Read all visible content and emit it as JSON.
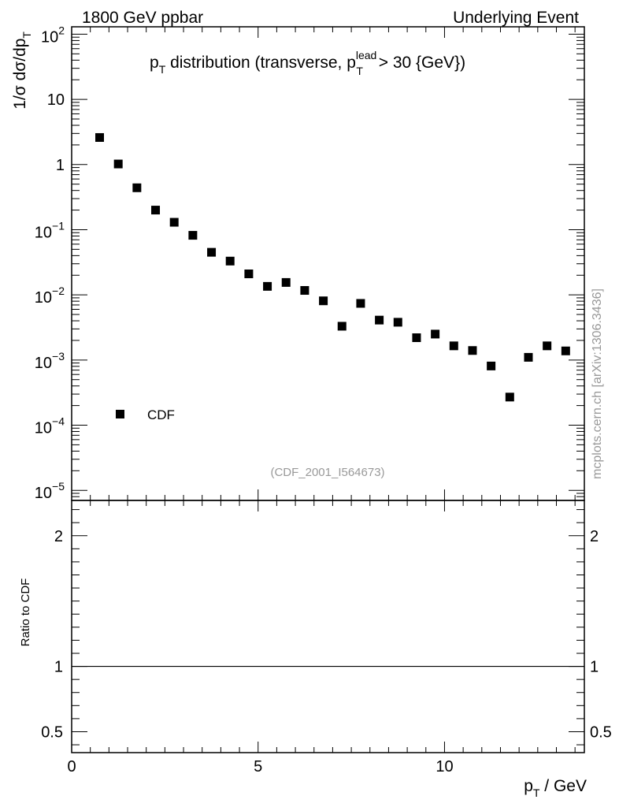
{
  "header": {
    "left": "1800 GeV ppbar",
    "right": "Underlying Event"
  },
  "side_label": "mcplots.cern.ch [arXiv:1306.3436]",
  "watermark": "(CDF_2001_I564673)",
  "chart_data": [
    {
      "type": "scatter",
      "title_parts": {
        "p": "p",
        "T": "T",
        "mid": " distribution (transverse, ",
        "lead": "lead",
        "end": " > 30 {GeV})"
      },
      "ylabel_parts": {
        "lead": "1/σ  dσ/dp",
        "T": "T"
      },
      "y_scale": "log",
      "ylim": [
        7e-06,
        130
      ],
      "xlim": [
        0,
        13.75
      ],
      "y_tick_labels": [
        {
          "base": "10",
          "exp": "2",
          "value": 100
        },
        {
          "base": "10",
          "exp": "",
          "value": 10
        },
        {
          "base": "1",
          "exp": "",
          "value": 1
        },
        {
          "base": "10",
          "exp": "−1",
          "value": 0.1
        },
        {
          "base": "10",
          "exp": "−2",
          "value": 0.01
        },
        {
          "base": "10",
          "exp": "−3",
          "value": 0.001
        },
        {
          "base": "10",
          "exp": "−4",
          "value": 0.0001
        },
        {
          "base": "10",
          "exp": "−5",
          "value": 1e-05
        }
      ],
      "legend": {
        "label": "CDF",
        "position": "lower-left"
      },
      "series": [
        {
          "name": "CDF",
          "x": [
            0.75,
            1.25,
            1.75,
            2.25,
            2.75,
            3.25,
            3.75,
            4.25,
            4.75,
            5.25,
            5.75,
            6.25,
            6.75,
            7.25,
            7.75,
            8.25,
            8.75,
            9.25,
            9.75,
            10.25,
            10.75,
            11.25,
            11.75,
            12.25,
            12.75,
            13.25
          ],
          "y": [
            2.6,
            1.02,
            0.44,
            0.2,
            0.13,
            0.082,
            0.045,
            0.033,
            0.021,
            0.0135,
            0.0155,
            0.0117,
            0.0081,
            0.0033,
            0.0074,
            0.0041,
            0.0038,
            0.0022,
            0.0025,
            0.00165,
            0.0014,
            0.00081,
            0.00027,
            0.0011,
            0.00165,
            0.00138
          ]
        }
      ]
    },
    {
      "type": "line",
      "ylabel": "Ratio to CDF",
      "xlabel_parts": {
        "p": "p",
        "T": "T",
        "unit": " / GeV"
      },
      "xlim": [
        0,
        13.75
      ],
      "ylim": [
        0.34,
        2.27
      ],
      "x_tick_labels": [
        {
          "label": "0",
          "value": 0
        },
        {
          "label": "5",
          "value": 5
        },
        {
          "label": "10",
          "value": 10
        }
      ],
      "y_tick_labels": [
        {
          "label": "2",
          "value": 2
        },
        {
          "label": "1",
          "value": 1
        },
        {
          "label": "0.5",
          "value": 0.5
        }
      ],
      "reference_line": 1
    }
  ]
}
